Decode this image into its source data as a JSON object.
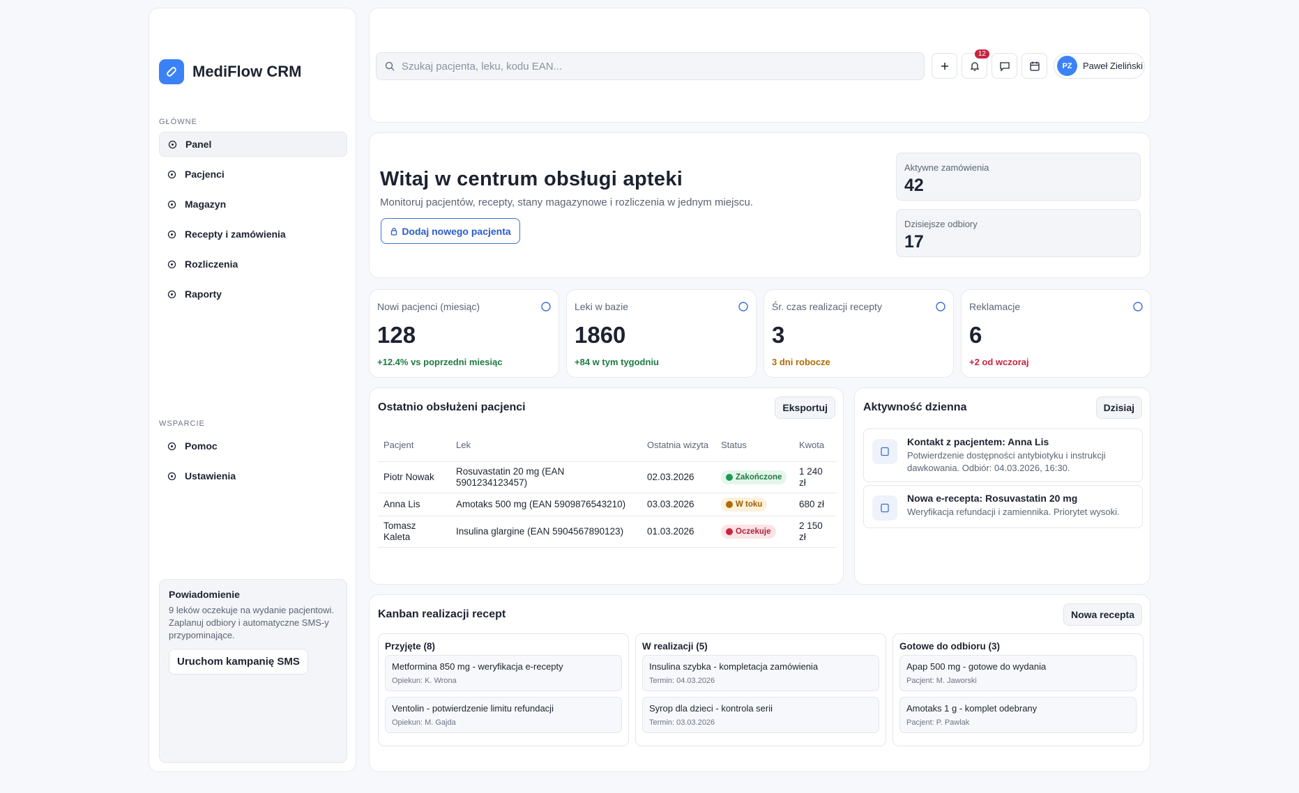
{
  "sidebar": {
    "brand": "MediFlow CRM",
    "sections": [
      {
        "title": "GŁÓWNE",
        "items": [
          "Panel",
          "Pacjenci",
          "Magazyn",
          "Recepty i zamówienia",
          "Rozliczenia",
          "Raporty"
        ]
      },
      {
        "title": "WSPARCIE",
        "items": [
          "Pomoc",
          "Ustawienia"
        ]
      }
    ],
    "notice": {
      "title": "Powiadomienie",
      "text": "9 leków oczekuje na wydanie pacjentowi. Zaplanuj odbiory i automatyczne SMS-y przypominające.",
      "button": "Uruchom kampanię SMS"
    }
  },
  "header": {
    "search_placeholder": "Szukaj pacjenta, leku, kodu EAN...",
    "notifications": "12",
    "user_initials": "PZ",
    "user_name": "Paweł Zieliński"
  },
  "hero": {
    "title": "Witaj w centrum obsługi apteki",
    "subtitle": "Monitoruj pacjentów, recepty, stany magazynowe i rozliczenia w jednym miejscu.",
    "button": "Dodaj nowego pacjenta",
    "kpis": [
      {
        "label": "Aktywne zamówienia",
        "value": "42"
      },
      {
        "label": "Dzisiejsze odbiory",
        "value": "17"
      }
    ]
  },
  "stats": [
    {
      "label": "Nowi pacjenci (miesiąc)",
      "value": "128",
      "note": "+12.4% vs poprzedni miesiąc"
    },
    {
      "label": "Leki w bazie",
      "value": "1860",
      "note": "+84 w tym tygodniu"
    },
    {
      "label": "Śr. czas realizacji recepty",
      "value": "3",
      "note": "3 dni robocze"
    },
    {
      "label": "Reklamacje",
      "value": "6",
      "note": "+2 od wczoraj"
    }
  ],
  "table": {
    "title": "Ostatnio obsłużeni pacjenci",
    "button": "Eksportuj",
    "columns": [
      "Pacjent",
      "Lek",
      "Ostatnia wizyta",
      "Status",
      "Kwota"
    ],
    "rows": [
      [
        "Piotr Nowak",
        "Rosuvastatin 20 mg (EAN 5901234123457)",
        "02.03.2026",
        "Zakończone",
        "1 240 zł"
      ],
      [
        "Anna Lis",
        "Amotaks 500 mg (EAN 5909876543210)",
        "03.03.2026",
        "W toku",
        "680 zł"
      ],
      [
        "Tomasz Kaleta",
        "Insulina glargine (EAN 5904567890123)",
        "01.03.2026",
        "Oczekuje",
        "2 150 zł"
      ]
    ]
  },
  "activity": {
    "title": "Aktywność dzienna",
    "button": "Dzisiaj",
    "items": [
      {
        "title": "Kontakt z pacjentem: Anna Lis",
        "text": "Potwierdzenie dostępności antybiotyku i instrukcji dawkowania. Odbiór: 04.03.2026, 16:30."
      },
      {
        "title": "Nowa e-recepta: Rosuvastatin 20 mg",
        "text": "Weryfikacja refundacji i zamiennika. Priorytet wysoki."
      }
    ]
  },
  "kanban": {
    "title": "Kanban realizacji recept",
    "button": "Nowa recepta",
    "columns": [
      {
        "title": "Przyjęte (8)",
        "cards": [
          {
            "title": "Metformina 850 mg - weryfikacja e-recepty",
            "meta": "Opiekun: K. Wrona"
          },
          {
            "title": "Ventolin - potwierdzenie limitu refundacji",
            "meta": "Opiekun: M. Gajda"
          }
        ]
      },
      {
        "title": "W realizacji (5)",
        "cards": [
          {
            "title": "Insulina szybka - kompletacja zamówienia",
            "meta": "Termin: 04.03.2026"
          },
          {
            "title": "Syrop dla dzieci - kontrola serii",
            "meta": "Termin: 03.03.2026"
          }
        ]
      },
      {
        "title": "Gotowe do odbioru (3)",
        "cards": [
          {
            "title": "Apap 500 mg - gotowe do wydania",
            "meta": "Pacjent: M. Jaworski"
          },
          {
            "title": "Amotaks 1 g - komplet odebrany",
            "meta": "Pacjent: P. Pawlak"
          }
        ]
      }
    ]
  }
}
